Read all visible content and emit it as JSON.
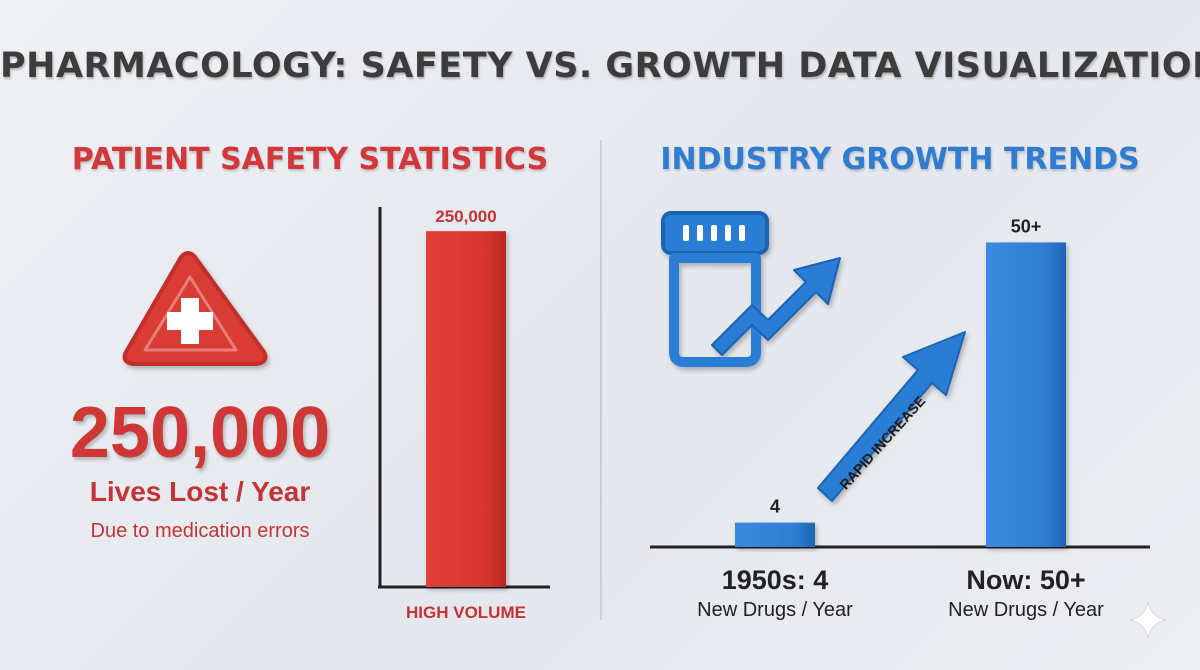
{
  "title": "PHARMACOLOGY: SAFETY VS. GROWTH DATA VISUALIZATION",
  "left": {
    "heading": "PATIENT SAFETY STATISTICS",
    "icon": "warning-medical-cross-icon",
    "big_number": "250,000",
    "big_label": "Lives Lost / Year",
    "note": "Due to medication errors"
  },
  "right": {
    "heading": "INDUSTRY GROWTH TRENDS",
    "icon": "pill-bottle-trend-up-icon",
    "arrow_label": "RAPID INCREASE",
    "captions": [
      {
        "year": "1950s: 4",
        "sub": "New Drugs / Year"
      },
      {
        "year": "Now: 50+",
        "sub": "New Drugs / Year"
      }
    ]
  },
  "colors": {
    "red": "#d93a34",
    "blue": "#2c7dd4",
    "title": "#3c3c3c"
  },
  "chart_data": [
    {
      "type": "bar",
      "title": "PATIENT SAFETY STATISTICS",
      "categories": [
        "HIGH VOLUME"
      ],
      "values": [
        250000
      ],
      "data_labels": [
        "250,000"
      ],
      "ylim": [
        0,
        300000
      ]
    },
    {
      "type": "bar",
      "title": "INDUSTRY GROWTH TRENDS",
      "categories": [
        "1950s",
        "Now"
      ],
      "values": [
        4,
        50
      ],
      "data_labels": [
        "4",
        "50+"
      ],
      "ylim": [
        0,
        55
      ]
    }
  ]
}
